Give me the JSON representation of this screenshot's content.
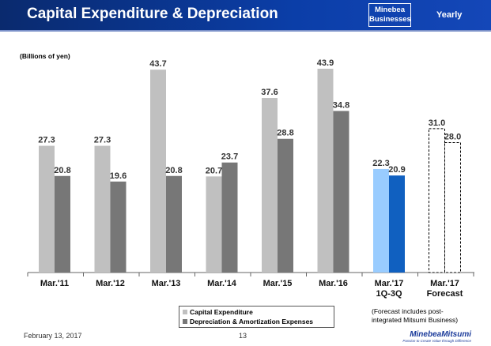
{
  "header": {
    "title": "Capital Expenditure & Depreciation",
    "badge_line1": "Minebea",
    "badge_line2": "Businesses",
    "period": "Yearly"
  },
  "chart_data": {
    "type": "bar",
    "unit_label": "(Billions of yen)",
    "categories": [
      "Mar.'11",
      "Mar.'12",
      "Mar.'13",
      "Mar.'14",
      "Mar.'15",
      "Mar.'16",
      "Mar.'17\n1Q-3Q",
      "Mar.'17\nForecast"
    ],
    "series": [
      {
        "name": "Capital Expenditure",
        "values": [
          27.3,
          27.3,
          43.7,
          20.7,
          37.6,
          43.9,
          22.3,
          31.0
        ]
      },
      {
        "name": "Depreciation & Amortization Expenses",
        "values": [
          20.8,
          19.6,
          20.8,
          23.7,
          28.8,
          34.8,
          20.9,
          28.0
        ]
      }
    ],
    "ylim": [
      0,
      50
    ],
    "colors": {
      "capex": "#c0c0c0",
      "depr": "#777777",
      "capex_q": "#99ccff",
      "depr_q": "#1060c0"
    },
    "forecast_style": "dashed-outline"
  },
  "legend": {
    "capex_label": "Capital Expenditure",
    "depr_label": "Depreciation & Amortization Expenses"
  },
  "note": {
    "line1": "(Forecast includes post-",
    "line2": "integrated Mitsumi Business)"
  },
  "footer": {
    "date": "February 13, 2017",
    "page": "13",
    "logo": "MinebeaMitsumi",
    "logo_tagline": "Passion to Create Value through Difference"
  }
}
